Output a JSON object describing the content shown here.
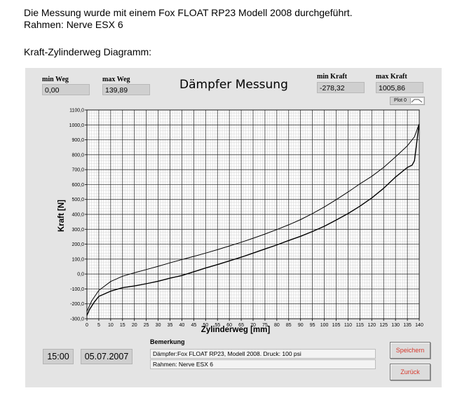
{
  "document": {
    "line1": "Die Messung wurde mit einem Fox FLOAT RP23 Modell 2008 durchgeführt.",
    "line2": "Rahmen: Nerve ESX 6",
    "line3": "Kraft-Zylinderweg Diagramm:"
  },
  "stats": {
    "min_weg_label": "min Weg",
    "min_weg_value": "0,00",
    "max_weg_label": "max Weg",
    "max_weg_value": "139,89",
    "min_kraft_label": "min Kraft",
    "min_kraft_value": "-278,32",
    "max_kraft_label": "max Kraft",
    "max_kraft_value": "1005,86"
  },
  "title": "Dämpfer Messung",
  "legend": {
    "label": "Plot 0"
  },
  "chart_data": {
    "type": "line",
    "xlabel": "Zylinderweg [mm]",
    "ylabel": "Kraft [N]",
    "xlim": [
      0,
      140
    ],
    "ylim": [
      -300,
      1100
    ],
    "x_ticks": [
      "0",
      "5",
      "10",
      "15",
      "20",
      "25",
      "30",
      "35",
      "40",
      "45",
      "50",
      "55",
      "60",
      "65",
      "70",
      "75",
      "80",
      "85",
      "90",
      "95",
      "100",
      "105",
      "110",
      "115",
      "120",
      "125",
      "130",
      "135",
      "140"
    ],
    "y_ticks": [
      "1100,0",
      "1000,0",
      "900,0",
      "800,0",
      "700,0",
      "600,0",
      "500,0",
      "400,0",
      "300,0",
      "200,0",
      "100,0",
      "0,0",
      "-100,0",
      "-200,0",
      "-300,0"
    ],
    "grid": true,
    "series": [
      {
        "line_color": "#000000",
        "x": [
          0,
          2,
          5,
          10,
          15,
          20,
          25,
          30,
          35,
          40,
          45,
          50,
          55,
          60,
          65,
          70,
          75,
          80,
          85,
          90,
          95,
          100,
          105,
          110,
          115,
          120,
          125,
          130,
          135,
          138,
          139.9
        ],
        "values": [
          -250,
          -180,
          -110,
          -50,
          -15,
          8,
          30,
          52,
          75,
          97,
          118,
          140,
          163,
          188,
          213,
          240,
          268,
          298,
          330,
          365,
          405,
          450,
          498,
          550,
          605,
          655,
          715,
          785,
          860,
          920,
          1005
        ]
      },
      {
        "line_color": "#000000",
        "x": [
          139.9,
          138,
          137,
          135,
          130,
          125,
          120,
          115,
          110,
          105,
          100,
          95,
          90,
          85,
          80,
          75,
          70,
          65,
          60,
          55,
          50,
          45,
          40,
          35,
          30,
          25,
          20,
          15,
          10,
          5,
          3,
          1,
          0
        ],
        "values": [
          1005,
          760,
          730,
          715,
          650,
          575,
          510,
          455,
          405,
          362,
          320,
          285,
          253,
          225,
          195,
          168,
          140,
          113,
          88,
          63,
          40,
          15,
          -10,
          -28,
          -48,
          -65,
          -80,
          -92,
          -115,
          -150,
          -190,
          -240,
          -278
        ]
      }
    ]
  },
  "clock": {
    "time": "15:00",
    "date": "05.07.2007"
  },
  "remark": {
    "label": "Bemerkung",
    "line1": "Dämpfer:Fox FLOAT RP23, Modell 2008.  Druck: 100 psi",
    "line2": "Rahmen: Nerve ESX 6"
  },
  "buttons": {
    "save": "Speichern",
    "back": "Zurück"
  }
}
